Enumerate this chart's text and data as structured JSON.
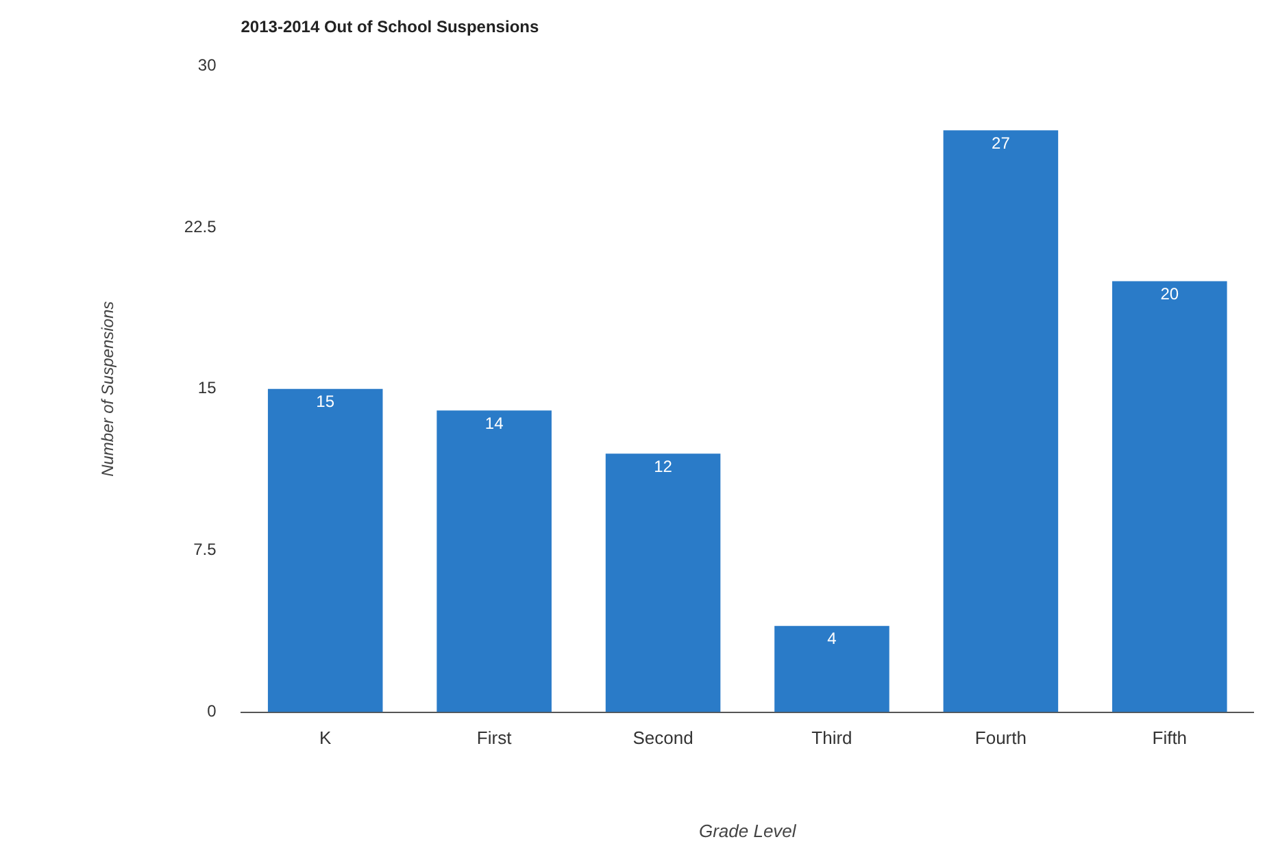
{
  "chart_data": {
    "type": "bar",
    "title": "2013-2014 Out of School Suspensions",
    "xlabel": "Grade Level",
    "ylabel": "Number of Suspensions",
    "categories": [
      "K",
      "First",
      "Second",
      "Third",
      "Fourth",
      "Fifth"
    ],
    "values": [
      15,
      14,
      12,
      4,
      27,
      20
    ],
    "color": "#2a7bc8",
    "ylim": [
      0,
      30
    ],
    "yticks": [
      0,
      7.5,
      15,
      22.5,
      30
    ],
    "grid": false,
    "legend": false,
    "data_labels": true
  }
}
